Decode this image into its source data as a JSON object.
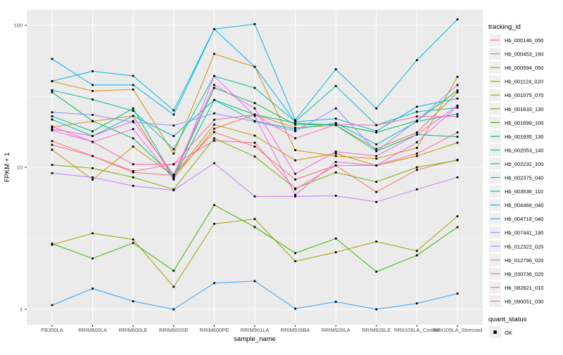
{
  "figure": {
    "ylabel": "FPKM + 1",
    "xlabel": "sample_name",
    "legend_title": "tracking_id",
    "legend2_title": "quant_status",
    "legend2_item": "OK"
  },
  "colors": {
    "panel_bg": "#EBEBEB",
    "grid": "#FFFFFF",
    "legend_key_bg": "#EFEFEF",
    "tick_mark": "#333333",
    "tick_text": "#4D4D4D",
    "marker": "#000000"
  },
  "chart_data": {
    "type": "line",
    "title": "",
    "xlabel": "sample_name",
    "ylabel": "FPKM + 1",
    "y_scale": "log10",
    "y_ticks": [
      1,
      10,
      100
    ],
    "ylim": [
      1,
      128
    ],
    "grid": true,
    "legend_position": "right",
    "marker": {
      "shape": "square",
      "color": "#000000",
      "status_label": "OK"
    },
    "categories": [
      "PB350LA",
      "RRIM600LA",
      "RRIM600LE",
      "RRIM600SE",
      "RRIM600PE",
      "RRIM901LA",
      "RRIM928BA",
      "RRIM928LA",
      "RRIM928LE",
      "RRII105LA_Control",
      "RRII105LA_Stressed"
    ],
    "series": [
      {
        "name": "Hb_000146_050",
        "color": "#F8766D",
        "values": [
          15.3,
          12.0,
          9.2,
          8.8,
          17.7,
          14.0,
          8.2,
          10.3,
          6.7,
          9.6,
          11.3
        ]
      },
      {
        "name": "Hb_000453_160",
        "color": "#EA8331",
        "values": [
          19.2,
          21.1,
          23.0,
          8.4,
          18.7,
          23.5,
          19.0,
          19.8,
          13.5,
          17.6,
          33.7
        ]
      },
      {
        "name": "Hb_000594_050",
        "color": "#D89000",
        "values": [
          40.3,
          34.5,
          35.3,
          12.5,
          62.9,
          51.0,
          13.2,
          12.0,
          11.5,
          13.7,
          43.3
        ]
      },
      {
        "name": "Hb_001124_020",
        "color": "#C09B00",
        "values": [
          13.3,
          8.2,
          14.0,
          8.7,
          20.0,
          16.7,
          11.2,
          12.5,
          10.3,
          12.0,
          14.9
        ]
      },
      {
        "name": "Hb_001575_070",
        "color": "#A3A500",
        "values": [
          2.85,
          3.43,
          3.1,
          1.44,
          4.0,
          4.32,
          2.18,
          2.52,
          3.0,
          2.58,
          4.52
        ]
      },
      {
        "name": "Hb_001633_130",
        "color": "#7CAE00",
        "values": [
          10.4,
          9.85,
          8.5,
          7.0,
          16.0,
          11.9,
          7.1,
          9.2,
          7.9,
          10.0,
          11.2
        ]
      },
      {
        "name": "Hb_001699_100",
        "color": "#39B600",
        "values": [
          2.9,
          2.28,
          2.93,
          1.87,
          5.42,
          3.8,
          2.49,
          3.15,
          1.84,
          2.4,
          3.79
        ]
      },
      {
        "name": "Hb_001935_130",
        "color": "#00BB4E",
        "values": [
          33.8,
          21.2,
          16.0,
          8.6,
          36.2,
          28.3,
          20.0,
          20.0,
          17.6,
          21.3,
          34.8
        ]
      },
      {
        "name": "Hb_002053_140",
        "color": "#00BF7D",
        "values": [
          22.9,
          17.9,
          26.0,
          8.4,
          29.8,
          23.5,
          20.5,
          19.8,
          13.0,
          17.0,
          16.4
        ]
      },
      {
        "name": "Hb_002232_100",
        "color": "#00C1A3",
        "values": [
          34.9,
          30.0,
          25.0,
          13.4,
          43.9,
          36.2,
          21.0,
          37.4,
          19.8,
          24.6,
          26.3
        ]
      },
      {
        "name": "Hb_002375_040",
        "color": "#00BFC4",
        "values": [
          21.7,
          16.6,
          23.0,
          16.6,
          29.8,
          21.2,
          18.6,
          20.5,
          14.5,
          21.0,
          23.7
        ]
      },
      {
        "name": "Hb_003536_110",
        "color": "#00BAE0",
        "values": [
          40.5,
          47.5,
          44.0,
          25.2,
          94.0,
          102.0,
          21.5,
          49.0,
          26.0,
          56.8,
          110.0
        ]
      },
      {
        "name": "Hb_004466_040",
        "color": "#00B0F6",
        "values": [
          58.0,
          38.0,
          38.0,
          23.5,
          94.0,
          51.0,
          20.9,
          22.0,
          18.0,
          26.7,
          30.5
        ]
      },
      {
        "name": "Hb_004718_040",
        "color": "#35A2FF",
        "values": [
          1.07,
          1.4,
          1.14,
          1.0,
          1.53,
          1.58,
          1.01,
          1.13,
          1.0,
          1.1,
          1.29
        ]
      },
      {
        "name": "Hb_007441_190",
        "color": "#9590FF",
        "values": [
          24.4,
          23.4,
          20.8,
          19.7,
          24.0,
          21.0,
          18.0,
          26.0,
          13.0,
          21.3,
          38.0
        ]
      },
      {
        "name": "Hb_012322_020",
        "color": "#C77CFF",
        "values": [
          9.1,
          8.5,
          7.4,
          6.9,
          10.7,
          6.24,
          6.24,
          6.3,
          5.7,
          7.0,
          8.5
        ]
      },
      {
        "name": "Hb_012796_020",
        "color": "#E76BF3",
        "values": [
          18.2,
          15.1,
          18.6,
          8.2,
          43.9,
          23.0,
          6.4,
          10.9,
          10.3,
          15.0,
          26.9
        ]
      },
      {
        "name": "Hb_030736_020",
        "color": "#FA62DB",
        "values": [
          18.6,
          16.6,
          21.2,
          8.9,
          38.0,
          26.0,
          9.0,
          12.9,
          12.0,
          17.0,
          27.2
        ]
      },
      {
        "name": "Hb_082821_010",
        "color": "#FF62BC",
        "values": [
          19.4,
          15.1,
          10.5,
          10.5,
          21.6,
          23.5,
          16.0,
          20.0,
          19.8,
          22.8,
          22.8
        ]
      },
      {
        "name": "Hb_090051_030",
        "color": "#FF6A98",
        "values": [
          14.4,
          12.0,
          9.4,
          10.5,
          15.4,
          14.9,
          7.0,
          10.3,
          10.3,
          12.5,
          17.6
        ]
      }
    ]
  }
}
